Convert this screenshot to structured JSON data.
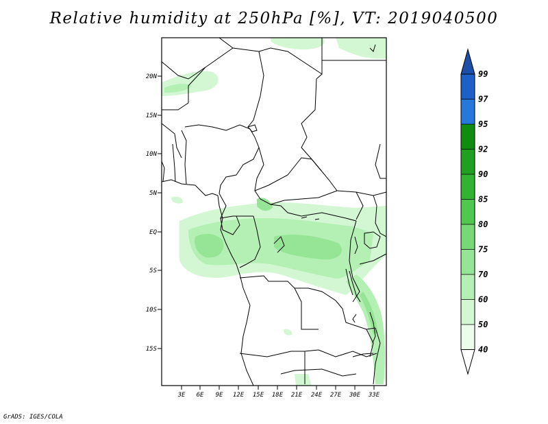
{
  "title": "Relative humidity at 250hPa [%], VT: 2019040500",
  "credit": "GrADS: IGES/COLA",
  "map": {
    "lat_labels": [
      "20N",
      "15N",
      "10N",
      "5N",
      "EQ",
      "5S",
      "10S",
      "15S"
    ],
    "lon_labels": [
      "3E",
      "6E",
      "9E",
      "12E",
      "15E",
      "18E",
      "21E",
      "24E",
      "27E",
      "30E",
      "33E"
    ]
  },
  "colorbar": {
    "labels": [
      "99",
      "97",
      "95",
      "92",
      "90",
      "85",
      "80",
      "75",
      "70",
      "60",
      "50",
      "40"
    ],
    "colors": [
      "#1e5fc8",
      "#2878dc",
      "#3c96f0",
      "#108c10",
      "#20a020",
      "#32b432",
      "#50c850",
      "#78d878",
      "#96e496",
      "#b4efb4",
      "#d2f7d2",
      "#ecfdec",
      "#ffffff"
    ],
    "top_color": "#1c4fa8"
  }
}
